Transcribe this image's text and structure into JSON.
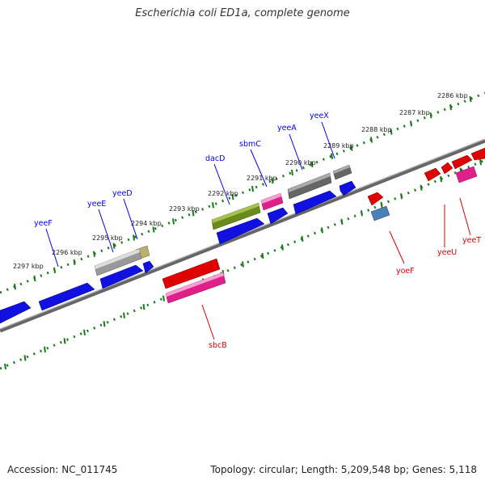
{
  "title": "Escherichia coli ED1a, complete genome",
  "footer": {
    "accession": "Accession: NC_011745",
    "summary": "Topology: circular; Length: 5,209,548 bp; Genes: 5,118"
  },
  "colors": {
    "forward_strand": "#0000ee",
    "reverse_strand": "#dd0000",
    "ruler": "#1a7a1a",
    "backbone": "#777777"
  },
  "kbp_labels": [
    {
      "name": "kbp-2286",
      "text": "2286 kbp"
    },
    {
      "name": "kbp-2287",
      "text": "2287 kbp"
    },
    {
      "name": "kbp-2288",
      "text": "2288 kbp"
    },
    {
      "name": "kbp-2289",
      "text": "2289 kbp"
    },
    {
      "name": "kbp-2290",
      "text": "2290 kbp"
    },
    {
      "name": "kbp-2291",
      "text": "2291 kbp"
    },
    {
      "name": "kbp-2292",
      "text": "2292 kbp"
    },
    {
      "name": "kbp-2293",
      "text": "2293 kbp"
    },
    {
      "name": "kbp-2294",
      "text": "2294 kbp"
    },
    {
      "name": "kbp-2295",
      "text": "2295 kbp"
    },
    {
      "name": "kbp-2296",
      "text": "2296 kbp"
    },
    {
      "name": "kbp-2297",
      "text": "2297 kbp"
    }
  ],
  "genes": {
    "yeeX": "yeeX",
    "yeeA": "yeeA",
    "sbmC": "sbmC",
    "dacD": "dacD",
    "yeeD": "yeeD",
    "yeeE": "yeeE",
    "yeeF": "yeeF",
    "yoeF": "yoeF",
    "yeeU": "yeeU",
    "yeeT": "yeeT",
    "sbcB": "sbcB"
  }
}
